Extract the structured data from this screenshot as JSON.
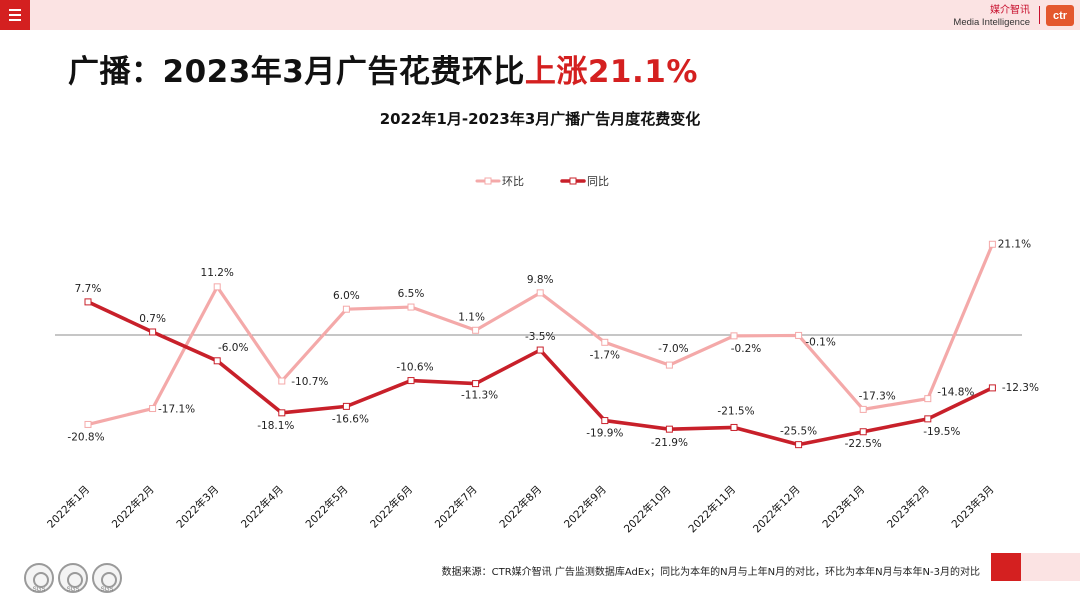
{
  "header": {
    "brand_cn": "媒介智讯",
    "brand_en": "Media Intelligence",
    "logo_text": "ctr"
  },
  "headline": {
    "part1": "广播：2023年3月广告花费环比",
    "part2": "上涨21.1%"
  },
  "footer": {
    "source": "数据来源：CTR媒介智讯 广告监测数据库AdEx；同比为本年的N月与上年N月的对比，环比为本年N月与本年N-3月的对比",
    "badge_label": "SGS"
  },
  "colors": {
    "accent": "#d42020",
    "pink_bg": "#fbe3e3",
    "mom_line": "#f4a9a9",
    "yoy_line": "#c8202a"
  },
  "chart_data": {
    "type": "line",
    "title": "2022年1月-2023年3月广播广告月度花费变化",
    "categories": [
      "2022年1月",
      "2022年2月",
      "2022年3月",
      "2022年4月",
      "2022年5月",
      "2022年6月",
      "2022年7月",
      "2022年8月",
      "2022年9月",
      "2022年10月",
      "2022年11月",
      "2022年12月",
      "2023年1月",
      "2023年2月",
      "2023年3月"
    ],
    "series": [
      {
        "name": "环比",
        "color": "#f4a9a9",
        "values": [
          -20.8,
          -17.1,
          11.2,
          -10.7,
          6.0,
          6.5,
          1.1,
          9.8,
          -1.7,
          -7.0,
          -0.2,
          -0.1,
          -17.3,
          -14.8,
          21.1
        ],
        "labels": [
          "-20.8%",
          "-17.1%",
          "11.2%",
          "-10.7%",
          "6.0%",
          "6.5%",
          "1.1%",
          "9.8%",
          "-1.7%",
          "-7.0%",
          "-0.2%",
          "-0.1%",
          "-17.3%",
          "-14.8%",
          "21.1%"
        ]
      },
      {
        "name": "同比",
        "color": "#c8202a",
        "values": [
          7.7,
          0.7,
          -6.0,
          -18.1,
          -16.6,
          -10.6,
          -11.3,
          -3.5,
          -19.9,
          -21.9,
          -21.5,
          -25.5,
          -22.5,
          -19.5,
          -12.3
        ],
        "labels": [
          "7.7%",
          "0.7%",
          "-6.0%",
          "-18.1%",
          "-16.6%",
          "-10.6%",
          "-11.3%",
          "-3.5%",
          "-19.9%",
          "-21.9%",
          "-21.5%",
          "-25.5%",
          "-22.5%",
          "-19.5%",
          "-12.3%"
        ]
      }
    ],
    "legend_position": "top-center",
    "grid": false
  }
}
